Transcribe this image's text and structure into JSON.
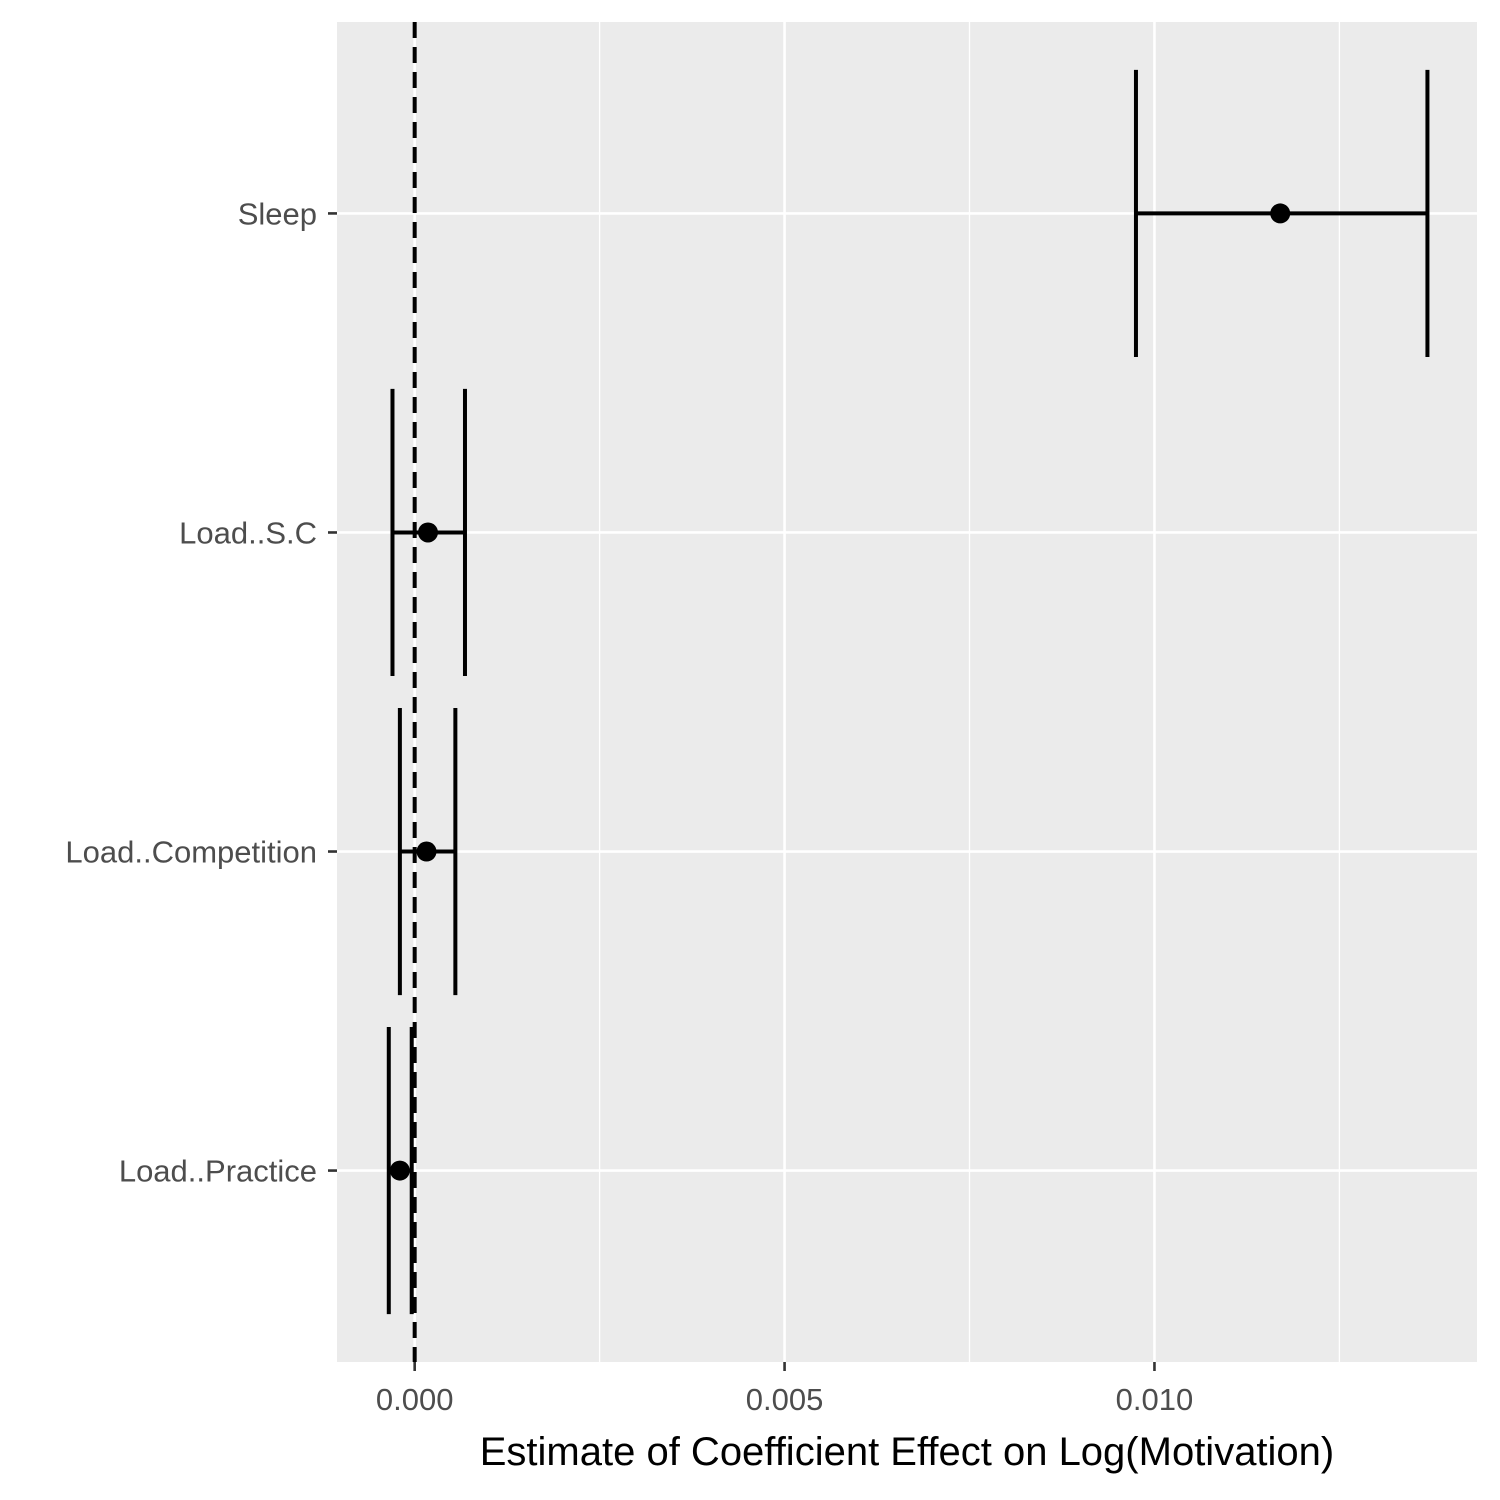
{
  "chart_data": {
    "type": "scatter",
    "subtype": "coefficient-plot-with-error-bars",
    "xlabel": "Estimate of Coefficient Effect on Log(Motivation)",
    "ylabel": "",
    "xlim": [
      -0.00105,
      0.01436
    ],
    "x_ticks": [
      {
        "value": 0.0,
        "label": "0.000"
      },
      {
        "value": 0.005,
        "label": "0.005"
      },
      {
        "value": 0.01,
        "label": "0.010"
      }
    ],
    "x_minor_ticks": [
      0.0025,
      0.0075,
      0.0125
    ],
    "categories": [
      "Sleep",
      "Load..S.C",
      "Load..Competition",
      "Load..Practice"
    ],
    "estimates": [
      {
        "term": "Sleep",
        "estimate": 0.0117,
        "lower": 0.00975,
        "upper": 0.01369
      },
      {
        "term": "Load..S.C",
        "estimate": 0.00018,
        "lower": -0.0003,
        "upper": 0.00068
      },
      {
        "term": "Load..Competition",
        "estimate": 0.00016,
        "lower": -0.0002,
        "upper": 0.00055
      },
      {
        "term": "Load..Practice",
        "estimate": -0.0002,
        "lower": -0.00035,
        "upper": -4e-05
      }
    ],
    "reference_line": {
      "x": 0,
      "style": "dashed"
    },
    "grid": true,
    "legend": "none",
    "colors": {
      "panel_background": "#ebebeb",
      "grid": "#ffffff",
      "marks": "#000000",
      "tick_text": "#4d4d4d"
    }
  }
}
